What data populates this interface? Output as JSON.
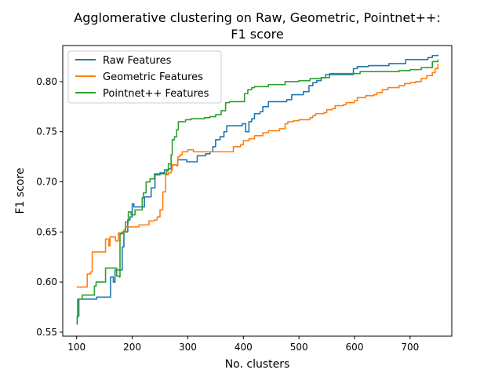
{
  "chart_data": {
    "type": "line",
    "title_lines": [
      "Agglomerative clustering on Raw, Geometric, Pointnet++:",
      "F1 score"
    ],
    "xlabel": "No. clusters",
    "ylabel": "F1 score",
    "xlim": [
      75,
      775
    ],
    "ylim": [
      0.546,
      0.836
    ],
    "xticks": [
      100,
      200,
      300,
      400,
      500,
      600,
      700
    ],
    "yticks": [
      0.55,
      0.6,
      0.65,
      0.7,
      0.75,
      0.8
    ],
    "legend_position": "top-left",
    "grid": false,
    "series": [
      {
        "name": "Raw Features",
        "color": "#1f77b4",
        "step": true,
        "points": [
          [
            100,
            0.558
          ],
          [
            101,
            0.565
          ],
          [
            102,
            0.583
          ],
          [
            105,
            0.583
          ],
          [
            135,
            0.583
          ],
          [
            136,
            0.585
          ],
          [
            160,
            0.585
          ],
          [
            161,
            0.605
          ],
          [
            165,
            0.605
          ],
          [
            166,
            0.6
          ],
          [
            168,
            0.6
          ],
          [
            169,
            0.612
          ],
          [
            180,
            0.612
          ],
          [
            182,
            0.635
          ],
          [
            185,
            0.65
          ],
          [
            192,
            0.662
          ],
          [
            196,
            0.665
          ],
          [
            200,
            0.678
          ],
          [
            203,
            0.675
          ],
          [
            220,
            0.675
          ],
          [
            222,
            0.685
          ],
          [
            232,
            0.685
          ],
          [
            234,
            0.694
          ],
          [
            240,
            0.694
          ],
          [
            241,
            0.707
          ],
          [
            250,
            0.709
          ],
          [
            258,
            0.712
          ],
          [
            265,
            0.713
          ],
          [
            270,
            0.717
          ],
          [
            280,
            0.717
          ],
          [
            282,
            0.722
          ],
          [
            296,
            0.722
          ],
          [
            298,
            0.72
          ],
          [
            315,
            0.72
          ],
          [
            317,
            0.726
          ],
          [
            330,
            0.726
          ],
          [
            332,
            0.728
          ],
          [
            340,
            0.73
          ],
          [
            345,
            0.735
          ],
          [
            350,
            0.742
          ],
          [
            358,
            0.745
          ],
          [
            365,
            0.75
          ],
          [
            370,
            0.756
          ],
          [
            395,
            0.756
          ],
          [
            398,
            0.758
          ],
          [
            402,
            0.758
          ],
          [
            404,
            0.75
          ],
          [
            410,
            0.76
          ],
          [
            415,
            0.763
          ],
          [
            420,
            0.768
          ],
          [
            430,
            0.77
          ],
          [
            435,
            0.775
          ],
          [
            442,
            0.775
          ],
          [
            445,
            0.78
          ],
          [
            475,
            0.78
          ],
          [
            478,
            0.782
          ],
          [
            485,
            0.782
          ],
          [
            487,
            0.787
          ],
          [
            505,
            0.787
          ],
          [
            508,
            0.79
          ],
          [
            515,
            0.79
          ],
          [
            518,
            0.796
          ],
          [
            525,
            0.799
          ],
          [
            532,
            0.801
          ],
          [
            540,
            0.804
          ],
          [
            548,
            0.807
          ],
          [
            595,
            0.807
          ],
          [
            598,
            0.813
          ],
          [
            605,
            0.815
          ],
          [
            622,
            0.815
          ],
          [
            625,
            0.816
          ],
          [
            660,
            0.816
          ],
          [
            662,
            0.818
          ],
          [
            690,
            0.818
          ],
          [
            692,
            0.822
          ],
          [
            730,
            0.822
          ],
          [
            732,
            0.824
          ],
          [
            740,
            0.826
          ],
          [
            750,
            0.827
          ]
        ]
      },
      {
        "name": "Geometric Features",
        "color": "#ff7f0e",
        "step": true,
        "points": [
          [
            100,
            0.595
          ],
          [
            118,
            0.595
          ],
          [
            119,
            0.608
          ],
          [
            125,
            0.61
          ],
          [
            128,
            0.63
          ],
          [
            150,
            0.63
          ],
          [
            152,
            0.643
          ],
          [
            157,
            0.643
          ],
          [
            158,
            0.636
          ],
          [
            160,
            0.645
          ],
          [
            170,
            0.641
          ],
          [
            175,
            0.649
          ],
          [
            185,
            0.652
          ],
          [
            188,
            0.655
          ],
          [
            210,
            0.655
          ],
          [
            212,
            0.657
          ],
          [
            225,
            0.657
          ],
          [
            230,
            0.661
          ],
          [
            240,
            0.662
          ],
          [
            245,
            0.665
          ],
          [
            250,
            0.672
          ],
          [
            255,
            0.69
          ],
          [
            260,
            0.707
          ],
          [
            265,
            0.709
          ],
          [
            270,
            0.711
          ],
          [
            272,
            0.717
          ],
          [
            278,
            0.717
          ],
          [
            280,
            0.716
          ],
          [
            282,
            0.725
          ],
          [
            286,
            0.727
          ],
          [
            290,
            0.73
          ],
          [
            300,
            0.732
          ],
          [
            310,
            0.73
          ],
          [
            380,
            0.73
          ],
          [
            382,
            0.735
          ],
          [
            395,
            0.737
          ],
          [
            400,
            0.741
          ],
          [
            410,
            0.743
          ],
          [
            420,
            0.746
          ],
          [
            435,
            0.749
          ],
          [
            445,
            0.751
          ],
          [
            465,
            0.753
          ],
          [
            475,
            0.758
          ],
          [
            480,
            0.76
          ],
          [
            490,
            0.761
          ],
          [
            500,
            0.762
          ],
          [
            520,
            0.764
          ],
          [
            525,
            0.766
          ],
          [
            530,
            0.768
          ],
          [
            545,
            0.769
          ],
          [
            550,
            0.772
          ],
          [
            560,
            0.773
          ],
          [
            565,
            0.776
          ],
          [
            580,
            0.777
          ],
          [
            585,
            0.779
          ],
          [
            600,
            0.781
          ],
          [
            605,
            0.784
          ],
          [
            620,
            0.786
          ],
          [
            635,
            0.787
          ],
          [
            640,
            0.789
          ],
          [
            650,
            0.792
          ],
          [
            660,
            0.794
          ],
          [
            680,
            0.796
          ],
          [
            690,
            0.798
          ],
          [
            700,
            0.799
          ],
          [
            710,
            0.8
          ],
          [
            720,
            0.803
          ],
          [
            730,
            0.806
          ],
          [
            740,
            0.809
          ],
          [
            745,
            0.813
          ],
          [
            750,
            0.818
          ]
        ]
      },
      {
        "name": "Pointnet++ Features",
        "color": "#2ca02c",
        "step": true,
        "points": [
          [
            100,
            0.566
          ],
          [
            102,
            0.566
          ],
          [
            104,
            0.583
          ],
          [
            107,
            0.583
          ],
          [
            110,
            0.587
          ],
          [
            130,
            0.587
          ],
          [
            132,
            0.596
          ],
          [
            135,
            0.6
          ],
          [
            150,
            0.6
          ],
          [
            152,
            0.614
          ],
          [
            170,
            0.614
          ],
          [
            172,
            0.606
          ],
          [
            177,
            0.605
          ],
          [
            178,
            0.648
          ],
          [
            182,
            0.65
          ],
          [
            188,
            0.66
          ],
          [
            193,
            0.67
          ],
          [
            198,
            0.667
          ],
          [
            205,
            0.672
          ],
          [
            215,
            0.672
          ],
          [
            218,
            0.684
          ],
          [
            220,
            0.689
          ],
          [
            225,
            0.7
          ],
          [
            232,
            0.703
          ],
          [
            240,
            0.708
          ],
          [
            260,
            0.708
          ],
          [
            262,
            0.711
          ],
          [
            265,
            0.718
          ],
          [
            270,
            0.727
          ],
          [
            272,
            0.742
          ],
          [
            276,
            0.745
          ],
          [
            280,
            0.752
          ],
          [
            283,
            0.76
          ],
          [
            292,
            0.76
          ],
          [
            296,
            0.762
          ],
          [
            306,
            0.763
          ],
          [
            330,
            0.764
          ],
          [
            340,
            0.765
          ],
          [
            350,
            0.767
          ],
          [
            360,
            0.771
          ],
          [
            368,
            0.779
          ],
          [
            375,
            0.78
          ],
          [
            400,
            0.78
          ],
          [
            402,
            0.788
          ],
          [
            408,
            0.792
          ],
          [
            415,
            0.794
          ],
          [
            420,
            0.795
          ],
          [
            440,
            0.795
          ],
          [
            445,
            0.797
          ],
          [
            470,
            0.797
          ],
          [
            475,
            0.8
          ],
          [
            500,
            0.801
          ],
          [
            510,
            0.801
          ],
          [
            520,
            0.803
          ],
          [
            540,
            0.804
          ],
          [
            555,
            0.808
          ],
          [
            600,
            0.808
          ],
          [
            610,
            0.81
          ],
          [
            680,
            0.811
          ],
          [
            700,
            0.812
          ],
          [
            720,
            0.814
          ],
          [
            740,
            0.82
          ],
          [
            750,
            0.822
          ]
        ]
      }
    ]
  }
}
